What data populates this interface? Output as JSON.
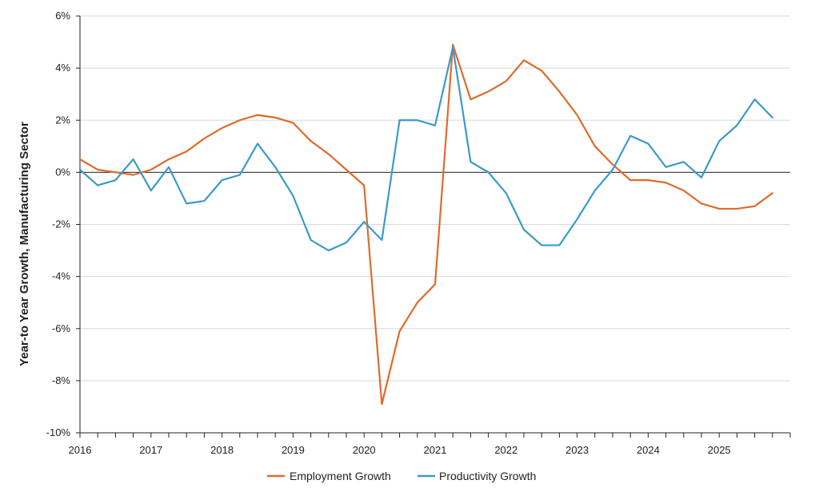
{
  "chart_data": {
    "type": "line",
    "title": "",
    "xlabel": "",
    "ylabel": "Year-to Year Growth, Manufacturing Sector",
    "ylim": [
      -10,
      6
    ],
    "y_ticks": [
      6,
      4,
      2,
      0,
      -2,
      -4,
      -6,
      -8,
      -10
    ],
    "y_tick_labels": [
      "6%",
      "4%",
      "2%",
      "0%",
      "-2%",
      "-4%",
      "-6%",
      "-8%",
      "-10%"
    ],
    "x_tick_labels": [
      "2016",
      "2017",
      "2018",
      "2019",
      "2020",
      "2021",
      "2022",
      "2023",
      "2024",
      "2025"
    ],
    "x": [
      "2016 Q1",
      "2016 Q2",
      "2016 Q3",
      "2016 Q4",
      "2017 Q1",
      "2017 Q2",
      "2017 Q3",
      "2017 Q4",
      "2018 Q1",
      "2018 Q2",
      "2018 Q3",
      "2018 Q4",
      "2019 Q1",
      "2019 Q2",
      "2019 Q3",
      "2019 Q4",
      "2020 Q1",
      "2020 Q2",
      "2020 Q3",
      "2020 Q4",
      "2021 Q1",
      "2021 Q2",
      "2021 Q3",
      "2021 Q4",
      "2022 Q1",
      "2022 Q2",
      "2022 Q3",
      "2022 Q4",
      "2023 Q1",
      "2023 Q2",
      "2023 Q3",
      "2023 Q4",
      "2024 Q1",
      "2024 Q2",
      "2024 Q3",
      "2024 Q4",
      "2025 Q1",
      "2025 Q2",
      "2025 Q3",
      "2025 Q4"
    ],
    "grid": true,
    "legend_position": "bottom",
    "series": [
      {
        "name": "Employment Growth",
        "color": "#e06a2b",
        "values": [
          0.5,
          0.1,
          0.0,
          -0.1,
          0.1,
          0.5,
          0.8,
          1.3,
          1.7,
          2.0,
          2.2,
          2.1,
          1.9,
          1.2,
          0.7,
          0.1,
          -0.5,
          -8.9,
          -6.1,
          -5.0,
          -4.3,
          4.9,
          2.8,
          3.1,
          3.5,
          4.3,
          3.9,
          3.1,
          2.2,
          1.0,
          0.3,
          -0.3,
          -0.3,
          -0.4,
          -0.7,
          -1.2,
          -1.4,
          -1.4,
          -1.3,
          -0.8
        ]
      },
      {
        "name": "Productivity Growth",
        "color": "#3b9ac8",
        "values": [
          0.1,
          -0.5,
          -0.3,
          0.5,
          -0.7,
          0.2,
          -1.2,
          -1.1,
          -0.3,
          -0.1,
          1.1,
          0.2,
          -0.9,
          -2.6,
          -3.0,
          -2.7,
          -1.9,
          -2.6,
          2.0,
          2.0,
          1.8,
          4.8,
          0.4,
          0.0,
          -0.8,
          -2.2,
          -2.8,
          -2.8,
          -1.8,
          -0.7,
          0.1,
          1.4,
          1.1,
          0.2,
          0.4,
          -0.2,
          1.2,
          1.8,
          2.8,
          2.1
        ]
      }
    ]
  }
}
